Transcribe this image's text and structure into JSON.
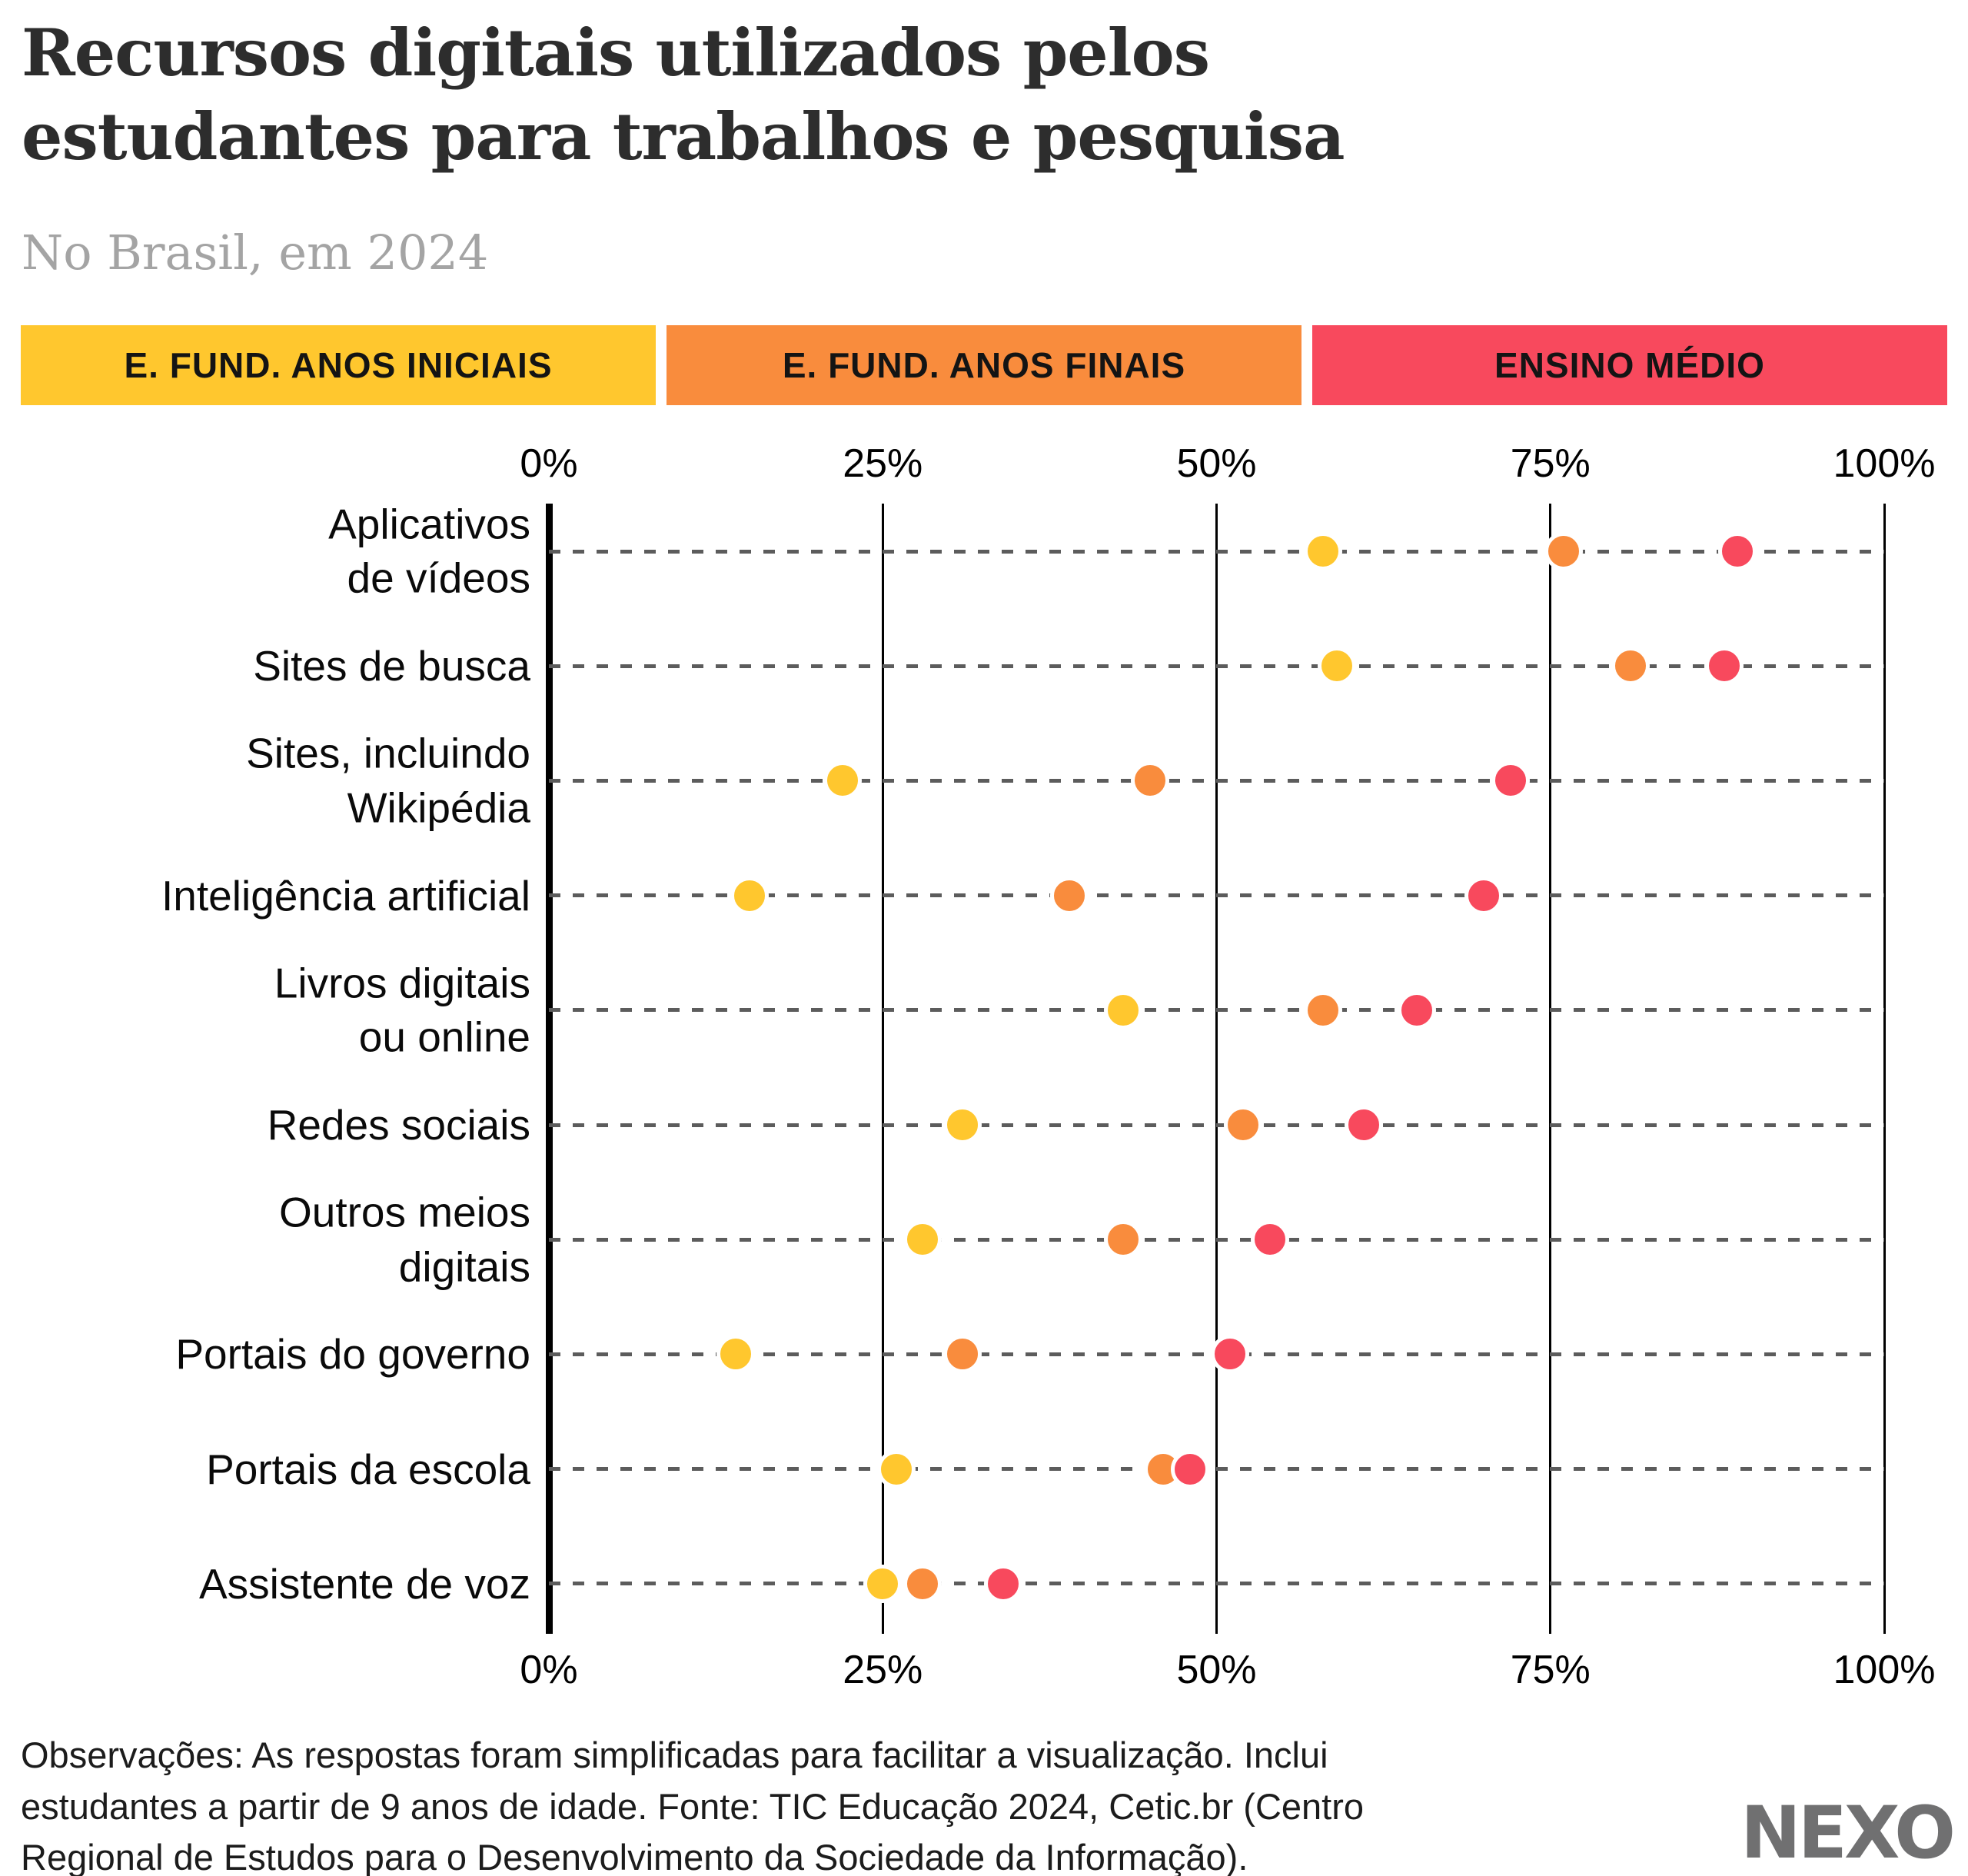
{
  "header": {
    "title": "Recursos digitais utilizados pelos\nestudantes para trabalhos e pesquisa",
    "subtitle": "No Brasil, em 2024"
  },
  "legend": [
    {
      "label": "E. FUND. ANOS INICIAIS",
      "color": "#FFC72E"
    },
    {
      "label": "E. FUND. ANOS FINAIS",
      "color": "#F98C3D"
    },
    {
      "label": "ENSINO MÉDIO",
      "color": "#F8495D"
    }
  ],
  "chart_data": {
    "type": "scatter",
    "orientation": "horizontal-dot-plot",
    "xlim": [
      0,
      100
    ],
    "x_ticks": [
      {
        "label": "0%",
        "value": 0
      },
      {
        "label": "25%",
        "value": 25
      },
      {
        "label": "50%",
        "value": 50
      },
      {
        "label": "75%",
        "value": 75
      },
      {
        "label": "100%",
        "value": 100
      }
    ],
    "grid": "vertical-lines-plus-dashed-row-guides",
    "legend_position": "top",
    "categories": [
      "Aplicativos\nde vídeos",
      "Sites de busca",
      "Sites, incluindo\nWikipédia",
      "Inteligência artificial",
      "Livros digitais\nou online",
      "Redes sociais",
      "Outros meios\ndigitais",
      "Portais do governo",
      "Portais da escola",
      "Assistente de voz"
    ],
    "series": [
      {
        "name": "E. Fund. Anos Iniciais",
        "color": "#FFC72E",
        "values": [
          58,
          59,
          22,
          15,
          43,
          31,
          28,
          14,
          26,
          25
        ]
      },
      {
        "name": "E. Fund. Anos Finais",
        "color": "#F98C3D",
        "values": [
          76,
          81,
          45,
          39,
          58,
          52,
          43,
          31,
          46,
          28
        ]
      },
      {
        "name": "Ensino Médio",
        "color": "#F8495D",
        "values": [
          89,
          88,
          72,
          70,
          65,
          61,
          54,
          51,
          48,
          34
        ]
      }
    ]
  },
  "footer": {
    "note": "Observações: As respostas foram simplificadas para facilitar a visualização. Inclui\nestudantes a partir de 9 anos de idade. Fonte: TIC Educação 2024, Cetic.br (Centro\nRegional de Estudos para o Desenvolvimento da Sociedade da Informação).",
    "logo": "NEXO"
  }
}
